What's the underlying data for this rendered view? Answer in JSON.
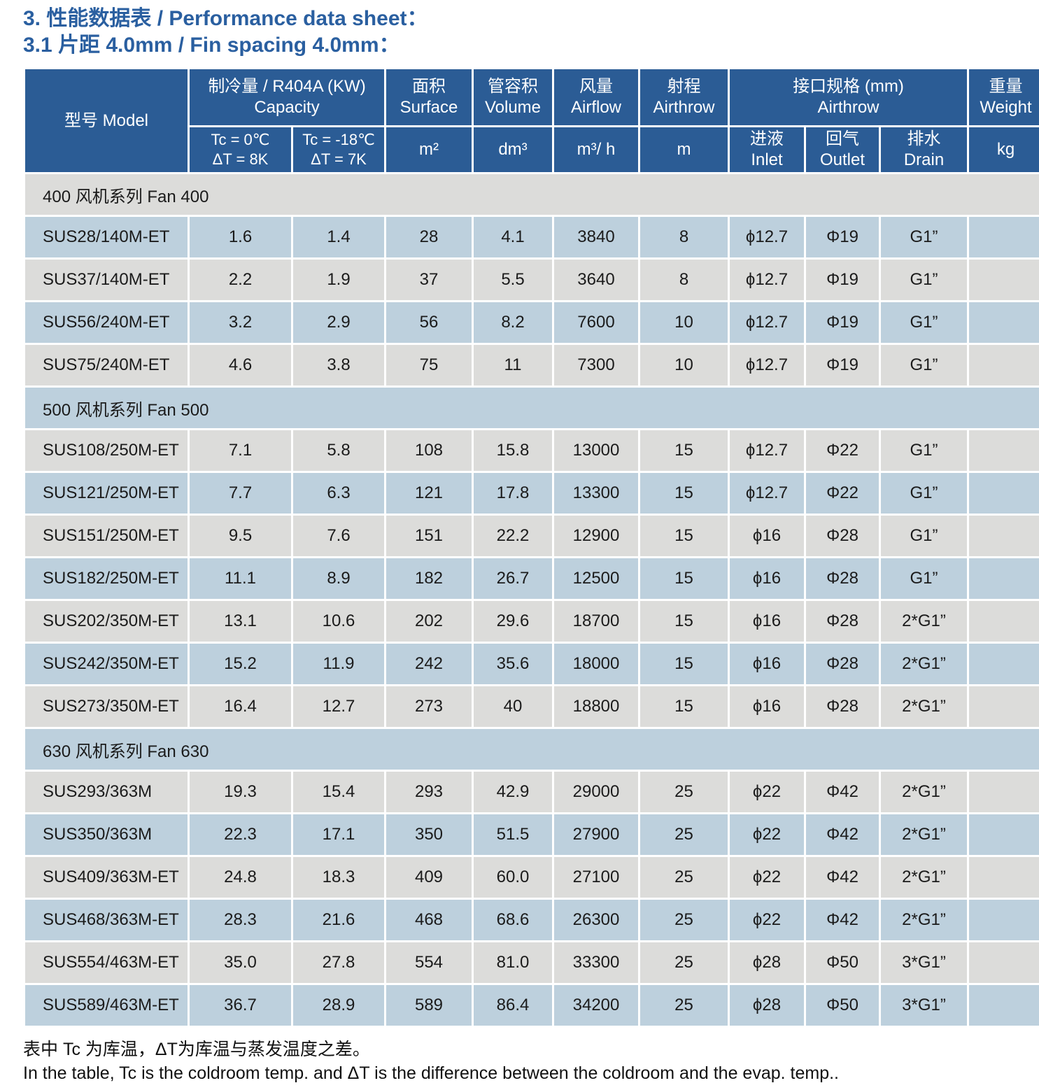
{
  "title": {
    "line1": "3. 性能数据表 / Performance data sheet：",
    "line2": "3.1 片距 4.0mm / Fin spacing 4.0mm："
  },
  "colors": {
    "title_blue": "#2a5fa0",
    "header_navy": "#2b5c95",
    "row_blue": "#bdd0dd",
    "row_gray": "#dcdcda"
  },
  "table": {
    "header": {
      "model": "型号 Model",
      "capacity_zh": "制冷量 / R404A (KW)",
      "capacity_en": "Capacity",
      "cap_sub1_l1": "Tc = 0℃",
      "cap_sub1_l2": "ΔT = 8K",
      "cap_sub2_l1": "Tc = -18℃",
      "cap_sub2_l2": "ΔT = 7K",
      "surface_zh": "面积",
      "surface_en": "Surface",
      "surface_unit": "m²",
      "volume_zh": "管容积",
      "volume_en": "Volume",
      "volume_unit": "dm³",
      "airflow_zh": "风量",
      "airflow_en": "Airflow",
      "airflow_unit": "m³/ h",
      "airthrow_zh": "射程",
      "airthrow_en": "Airthrow",
      "airthrow_unit": "m",
      "ports_zh": "接口规格 (mm)",
      "ports_en": "Airthrow",
      "inlet_zh": "进液",
      "inlet_en": "Inlet",
      "outlet_zh": "回气",
      "outlet_en": "Outlet",
      "drain_zh": "排水",
      "drain_en": "Drain",
      "weight_zh": "重量",
      "weight_en": "Weight",
      "weight_unit": "kg"
    },
    "columns": [
      "capacity-tc0",
      "capacity-tc18",
      "surface",
      "volume",
      "airflow",
      "airthrow",
      "inlet",
      "outlet",
      "drain",
      "weight"
    ],
    "rows": [
      {
        "type": "section",
        "label": "400 风机系列 Fan 400"
      },
      {
        "type": "data",
        "model": "SUS28/140M-ET",
        "values": [
          "1.6",
          "1.4",
          "28",
          "4.1",
          "3840",
          "8",
          "ϕ12.7",
          "Φ19",
          "G1”",
          ""
        ]
      },
      {
        "type": "data",
        "model": "SUS37/140M-ET",
        "values": [
          "2.2",
          "1.9",
          "37",
          "5.5",
          "3640",
          "8",
          "ϕ12.7",
          "Φ19",
          "G1”",
          ""
        ]
      },
      {
        "type": "data",
        "model": "SUS56/240M-ET",
        "values": [
          "3.2",
          "2.9",
          "56",
          "8.2",
          "7600",
          "10",
          "ϕ12.7",
          "Φ19",
          "G1”",
          ""
        ]
      },
      {
        "type": "data",
        "model": "SUS75/240M-ET",
        "values": [
          "4.6",
          "3.8",
          "75",
          "11",
          "7300",
          "10",
          "ϕ12.7",
          "Φ19",
          "G1”",
          ""
        ]
      },
      {
        "type": "section",
        "label": "500 风机系列 Fan 500"
      },
      {
        "type": "data",
        "model": "SUS108/250M-ET",
        "values": [
          "7.1",
          "5.8",
          "108",
          "15.8",
          "13000",
          "15",
          "ϕ12.7",
          "Φ22",
          "G1”",
          ""
        ]
      },
      {
        "type": "data",
        "model": "SUS121/250M-ET",
        "values": [
          "7.7",
          "6.3",
          "121",
          "17.8",
          "13300",
          "15",
          "ϕ12.7",
          "Φ22",
          "G1”",
          ""
        ]
      },
      {
        "type": "data",
        "model": "SUS151/250M-ET",
        "values": [
          "9.5",
          "7.6",
          "151",
          "22.2",
          "12900",
          "15",
          "ϕ16",
          "Φ28",
          "G1”",
          ""
        ]
      },
      {
        "type": "data",
        "model": "SUS182/250M-ET",
        "values": [
          "11.1",
          "8.9",
          "182",
          "26.7",
          "12500",
          "15",
          "ϕ16",
          "Φ28",
          "G1”",
          ""
        ]
      },
      {
        "type": "data",
        "model": "SUS202/350M-ET",
        "values": [
          "13.1",
          "10.6",
          "202",
          "29.6",
          "18700",
          "15",
          "ϕ16",
          "Φ28",
          "2*G1”",
          ""
        ]
      },
      {
        "type": "data",
        "model": "SUS242/350M-ET",
        "values": [
          "15.2",
          "11.9",
          "242",
          "35.6",
          "18000",
          "15",
          "ϕ16",
          "Φ28",
          "2*G1”",
          ""
        ]
      },
      {
        "type": "data",
        "model": "SUS273/350M-ET",
        "values": [
          "16.4",
          "12.7",
          "273",
          "40",
          "18800",
          "15",
          "ϕ16",
          "Φ28",
          "2*G1”",
          ""
        ]
      },
      {
        "type": "section",
        "label": "630 风机系列 Fan 630"
      },
      {
        "type": "data",
        "model": "SUS293/363M",
        "values": [
          "19.3",
          "15.4",
          "293",
          "42.9",
          "29000",
          "25",
          "ϕ22",
          "Φ42",
          "2*G1”",
          ""
        ]
      },
      {
        "type": "data",
        "model": "SUS350/363M",
        "values": [
          "22.3",
          "17.1",
          "350",
          "51.5",
          "27900",
          "25",
          "ϕ22",
          "Φ42",
          "2*G1”",
          ""
        ]
      },
      {
        "type": "data",
        "model": "SUS409/363M-ET",
        "values": [
          "24.8",
          "18.3",
          "409",
          "60.0",
          "27100",
          "25",
          "ϕ22",
          "Φ42",
          "2*G1”",
          ""
        ]
      },
      {
        "type": "data",
        "model": "SUS468/363M-ET",
        "values": [
          "28.3",
          "21.6",
          "468",
          "68.6",
          "26300",
          "25",
          "ϕ22",
          "Φ42",
          "2*G1”",
          ""
        ]
      },
      {
        "type": "data",
        "model": "SUS554/463M-ET",
        "values": [
          "35.0",
          "27.8",
          "554",
          "81.0",
          "33300",
          "25",
          "ϕ28",
          "Φ50",
          "3*G1”",
          ""
        ]
      },
      {
        "type": "data",
        "model": "SUS589/463M-ET",
        "values": [
          "36.7",
          "28.9",
          "589",
          "86.4",
          "34200",
          "25",
          "ϕ28",
          "Φ50",
          "3*G1”",
          ""
        ]
      }
    ]
  },
  "footnote": {
    "zh": "表中 Tc 为库温，ΔT为库温与蒸发温度之差。",
    "en": "In the table, Tc is the coldroom temp. and ΔT is the difference between the coldroom and the evap. temp.."
  }
}
